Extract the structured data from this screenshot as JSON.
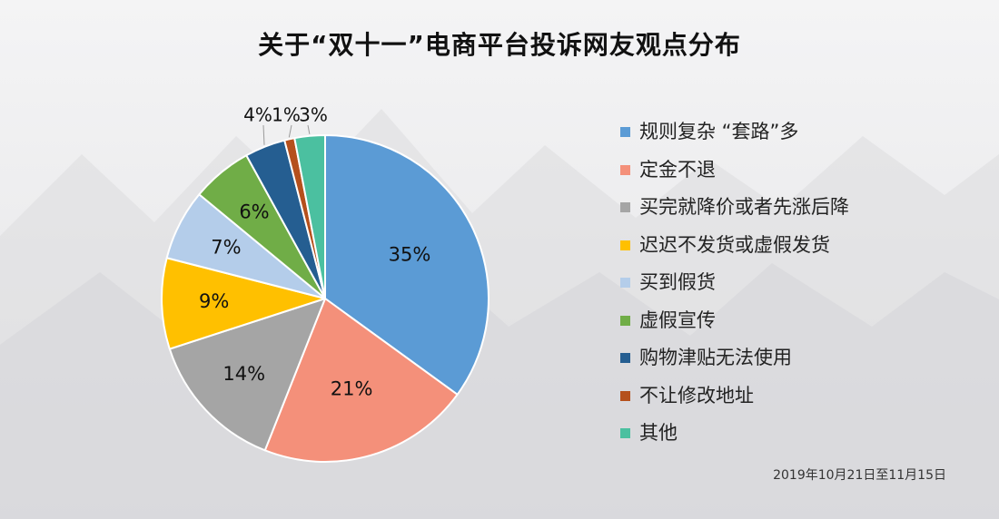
{
  "chart_data": {
    "type": "pie",
    "title": "关于“双十一”电商平台投诉网友观点分布",
    "note": "2019年10月21日至11月15日",
    "legend_position": "right",
    "slices": [
      {
        "label": "规则复杂 “套路”多",
        "value": 35,
        "value_label": "35%",
        "color": "#5b9bd5"
      },
      {
        "label": "定金不退",
        "value": 21,
        "value_label": "21%",
        "color": "#f4907a"
      },
      {
        "label": "买完就降价或者先涨后降",
        "value": 14,
        "value_label": "14%",
        "color": "#a5a5a5"
      },
      {
        "label": "迟迟不发货或虚假发货",
        "value": 9,
        "value_label": "9%",
        "color": "#ffc000"
      },
      {
        "label": "买到假货",
        "value": 7,
        "value_label": "7%",
        "color": "#b4cdea"
      },
      {
        "label": "虚假宣传",
        "value": 6,
        "value_label": "6%",
        "color": "#70ad47"
      },
      {
        "label": "购物津贴无法使用",
        "value": 4,
        "value_label": "4%",
        "color": "#255e91"
      },
      {
        "label": "不让修改地址",
        "value": 1,
        "value_label": "1%",
        "color": "#b5501c"
      },
      {
        "label": "其他",
        "value": 3,
        "value_label": "3%",
        "color": "#4bc0a0"
      }
    ]
  }
}
